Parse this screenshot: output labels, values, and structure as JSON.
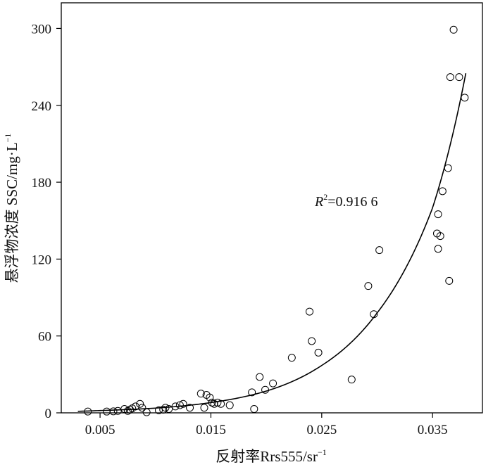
{
  "chart_data": {
    "type": "scatter",
    "xlabel": "反射率Rrs555/sr",
    "xlabel_sup": "−1",
    "ylabel": "悬浮物浓度 SSC/mg·L",
    "ylabel_sup": "−1",
    "xlim": [
      0.0015,
      0.0395
    ],
    "ylim": [
      0,
      320
    ],
    "xticks": [
      0.005,
      0.015,
      0.025,
      0.035
    ],
    "xtick_labels": [
      "0.005",
      "0.015",
      "0.025",
      "0.035"
    ],
    "yticks": [
      0,
      60,
      120,
      180,
      240,
      300
    ],
    "ytick_labels": [
      "0",
      "60",
      "120",
      "180",
      "240",
      "300"
    ],
    "grid": false,
    "annotation": {
      "r2_symbol": "R",
      "r2_sup": "2",
      "r2_value": "=0.916 6"
    },
    "fit_curve": {
      "type": "exponential",
      "x": [
        0.003,
        0.005,
        0.01,
        0.015,
        0.02,
        0.025,
        0.03,
        0.035,
        0.038
      ],
      "y": [
        1.2,
        1.8,
        3.7,
        8,
        17,
        37,
        78,
        160,
        265
      ]
    },
    "points": [
      {
        "x": 0.0039,
        "y": 1
      },
      {
        "x": 0.0056,
        "y": 1
      },
      {
        "x": 0.0062,
        "y": 1.2
      },
      {
        "x": 0.0066,
        "y": 1.5
      },
      {
        "x": 0.0072,
        "y": 3
      },
      {
        "x": 0.0075,
        "y": 1.5
      },
      {
        "x": 0.0077,
        "y": 2.5
      },
      {
        "x": 0.0079,
        "y": 3.5
      },
      {
        "x": 0.0082,
        "y": 5
      },
      {
        "x": 0.0086,
        "y": 7
      },
      {
        "x": 0.0088,
        "y": 4
      },
      {
        "x": 0.0092,
        "y": 0.5
      },
      {
        "x": 0.0103,
        "y": 2
      },
      {
        "x": 0.0107,
        "y": 2.5
      },
      {
        "x": 0.0109,
        "y": 4
      },
      {
        "x": 0.0112,
        "y": 3
      },
      {
        "x": 0.0118,
        "y": 5
      },
      {
        "x": 0.0122,
        "y": 6
      },
      {
        "x": 0.0125,
        "y": 7
      },
      {
        "x": 0.0131,
        "y": 4
      },
      {
        "x": 0.0141,
        "y": 15
      },
      {
        "x": 0.0144,
        "y": 4
      },
      {
        "x": 0.0146,
        "y": 14
      },
      {
        "x": 0.0149,
        "y": 12
      },
      {
        "x": 0.0151,
        "y": 8
      },
      {
        "x": 0.0153,
        "y": 7
      },
      {
        "x": 0.0156,
        "y": 8
      },
      {
        "x": 0.0159,
        "y": 7
      },
      {
        "x": 0.0167,
        "y": 6
      },
      {
        "x": 0.0187,
        "y": 16
      },
      {
        "x": 0.0189,
        "y": 3
      },
      {
        "x": 0.0194,
        "y": 28
      },
      {
        "x": 0.0199,
        "y": 18
      },
      {
        "x": 0.0206,
        "y": 23
      },
      {
        "x": 0.0223,
        "y": 43
      },
      {
        "x": 0.0239,
        "y": 79
      },
      {
        "x": 0.0241,
        "y": 56
      },
      {
        "x": 0.0247,
        "y": 47
      },
      {
        "x": 0.0277,
        "y": 26
      },
      {
        "x": 0.0292,
        "y": 99
      },
      {
        "x": 0.0297,
        "y": 77
      },
      {
        "x": 0.0302,
        "y": 127
      },
      {
        "x": 0.0354,
        "y": 140
      },
      {
        "x": 0.0355,
        "y": 155
      },
      {
        "x": 0.0355,
        "y": 128
      },
      {
        "x": 0.0357,
        "y": 138
      },
      {
        "x": 0.0359,
        "y": 173
      },
      {
        "x": 0.0364,
        "y": 191
      },
      {
        "x": 0.0365,
        "y": 103
      },
      {
        "x": 0.0366,
        "y": 262
      },
      {
        "x": 0.0369,
        "y": 299
      },
      {
        "x": 0.0374,
        "y": 262
      },
      {
        "x": 0.0379,
        "y": 246
      }
    ]
  }
}
